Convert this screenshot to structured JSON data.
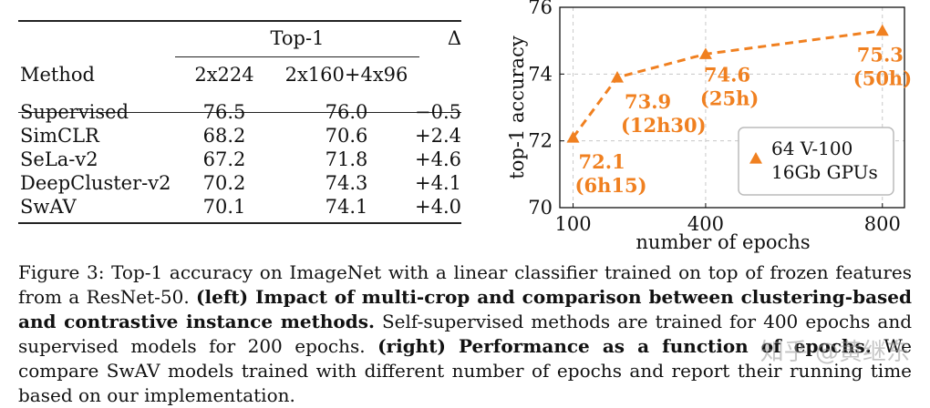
{
  "table": {
    "header_group": "Top-1",
    "delta_header": "Δ",
    "method_header": "Method",
    "sub_headers": [
      "2x224",
      "2x160+4x96"
    ],
    "rows": [
      {
        "method": "Supervised",
        "v1": "76.5",
        "v2": "76.0",
        "delta": "−0.5"
      },
      {
        "method": "SimCLR",
        "v1": "68.2",
        "v2": "70.6",
        "delta": "+2.4"
      },
      {
        "method": "SeLa-v2",
        "v1": "67.2",
        "v2": "71.8",
        "delta": "+4.6"
      },
      {
        "method": "DeepCluster-v2",
        "v1": "70.2",
        "v2": "74.3",
        "delta": "+4.1"
      },
      {
        "method": "SwAV",
        "v1": "70.1",
        "v2": "74.1",
        "delta": "+4.0"
      }
    ]
  },
  "chart_data": {
    "type": "line",
    "xlabel": "number of epochs",
    "ylabel": "top-1 accuracy",
    "x_ticks": [
      100,
      400,
      800
    ],
    "y_ticks": [
      70,
      72,
      74,
      76
    ],
    "xlim": [
      70,
      850
    ],
    "ylim": [
      70,
      76
    ],
    "grid": true,
    "legend_position": "bottom-right",
    "legend": [
      "64 V-100",
      "16Gb GPUs"
    ],
    "color": "#f08020",
    "series": [
      {
        "name": "SwAV",
        "x": [
          100,
          200,
          400,
          800
        ],
        "y": [
          72.1,
          73.9,
          74.6,
          75.3
        ],
        "labels": [
          "72.1",
          "73.9",
          "74.6",
          "75.3"
        ],
        "times": [
          "(6h15)",
          "(12h30)",
          "(25h)",
          "(50h)"
        ]
      }
    ]
  },
  "caption": {
    "prefix": "Figure 3: Top-1 accuracy on ImageNet with a linear classifier trained on top of frozen features from a ResNet-50.",
    "left_bold": "(left) Impact of multi-crop and comparison between clustering-based and contrastive instance methods.",
    "middle": "Self-supervised methods are trained for 400 epochs and supervised models for 200 epochs.",
    "right_bold": "(right) Performance as a function of epochs.",
    "suffix": "We compare SwAV models trained with different number of epochs and report their running time based on our implementation."
  },
  "watermark": "知乎 @黄继东"
}
